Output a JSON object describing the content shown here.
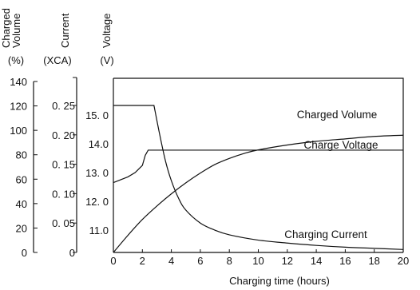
{
  "chart_data": {
    "type": "line",
    "title": "",
    "xlabel": "Charging time (hours)",
    "x_ticks": [
      0,
      2,
      4,
      6,
      8,
      10,
      12,
      14,
      16,
      18,
      20
    ],
    "xlim": [
      0,
      20
    ],
    "grid": false,
    "legend": "none",
    "y_axes": [
      {
        "key": "volume",
        "header": "Charged Volume",
        "header_lines": [
          "Charged",
          "Volume"
        ],
        "unit": "(%)",
        "ticks": [
          0,
          20,
          40,
          60,
          80,
          100,
          120,
          140
        ],
        "tick_labels": [
          "0",
          "20",
          "40",
          "60",
          "80",
          "100",
          "120",
          "140"
        ],
        "ylim": [
          0,
          140
        ]
      },
      {
        "key": "current",
        "header": "Current",
        "header_lines": [
          "Current"
        ],
        "unit": "(XCA)",
        "ticks": [
          0,
          0.05,
          0.1,
          0.15,
          0.2,
          0.25
        ],
        "tick_labels": [
          "0",
          "0. 05",
          "0. 10",
          "0. 15",
          "0. 20",
          "0. 25"
        ],
        "ylim": [
          0,
          0.28
        ]
      },
      {
        "key": "voltage",
        "header": "Voltage",
        "header_lines": [
          "Voltage"
        ],
        "unit": "(V)",
        "ticks": [
          11.0,
          12.0,
          13.0,
          14.0,
          15.0
        ],
        "tick_labels": [
          "11.0",
          "12. 0",
          "13. 0",
          "14.0",
          "15. 0"
        ],
        "ylim": [
          10.2,
          15.7
        ]
      }
    ],
    "series": [
      {
        "name": "Charged Volume",
        "axis": "volume",
        "color": "#111111",
        "x": [
          0,
          1,
          2,
          3,
          4,
          5,
          6,
          7,
          8,
          9,
          10,
          12,
          14,
          16,
          18,
          20
        ],
        "y": [
          0,
          14,
          27,
          38,
          48,
          57,
          65,
          72,
          77,
          81,
          84,
          88,
          91,
          93,
          95,
          96
        ]
      },
      {
        "name": "Charge Voltage",
        "axis": "voltage",
        "color": "#111111",
        "x": [
          0,
          1,
          1.5,
          2,
          2.2,
          2.4,
          20
        ],
        "y": [
          12.65,
          12.85,
          13.0,
          13.25,
          13.6,
          13.78,
          13.78
        ]
      },
      {
        "name": "Charging Current",
        "axis": "current",
        "color": "#111111",
        "x": [
          0,
          2.8,
          3.2,
          3.6,
          4,
          4.5,
          5,
          6,
          7,
          8,
          10,
          12,
          14,
          16,
          18,
          20
        ],
        "y": [
          0.25,
          0.25,
          0.2,
          0.155,
          0.122,
          0.092,
          0.072,
          0.05,
          0.038,
          0.03,
          0.021,
          0.016,
          0.012,
          0.009,
          0.007,
          0.005
        ]
      }
    ]
  }
}
